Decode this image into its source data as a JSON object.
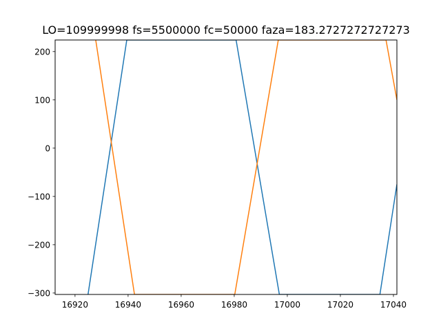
{
  "chart_data": {
    "type": "line",
    "title": "LO=109999998 fs=5500000 fc=50000 faza=183.2727272727273",
    "xlabel": "",
    "ylabel": "",
    "xlim": [
      16912.5,
      17041.3
    ],
    "ylim": [
      -303,
      224
    ],
    "xticks": [
      16920,
      16940,
      16960,
      16980,
      17000,
      17020,
      17040
    ],
    "xtick_labels": [
      "16920",
      "16940",
      "16960",
      "16980",
      "17000",
      "17020",
      "17040"
    ],
    "yticks": [
      -300,
      -200,
      -100,
      0,
      100,
      200
    ],
    "ytick_labels": [
      "−300",
      "−200",
      "−100",
      "0",
      "100",
      "200"
    ],
    "grid": false,
    "legend": "none",
    "series": [
      {
        "color": "#1f77b4",
        "points": [
          [
            16924.9,
            -303
          ],
          [
            16939.5,
            224
          ],
          [
            16980.7,
            224
          ],
          [
            16997.0,
            -303
          ],
          [
            17034.9,
            -303
          ],
          [
            17041.3,
            -75
          ]
        ]
      },
      {
        "color": "#ff7f0e",
        "points": [
          [
            16927.8,
            224
          ],
          [
            16942.4,
            -303
          ],
          [
            16980.2,
            -303
          ],
          [
            16996.6,
            224
          ],
          [
            17037.2,
            224
          ],
          [
            17041.3,
            100
          ]
        ]
      }
    ]
  }
}
